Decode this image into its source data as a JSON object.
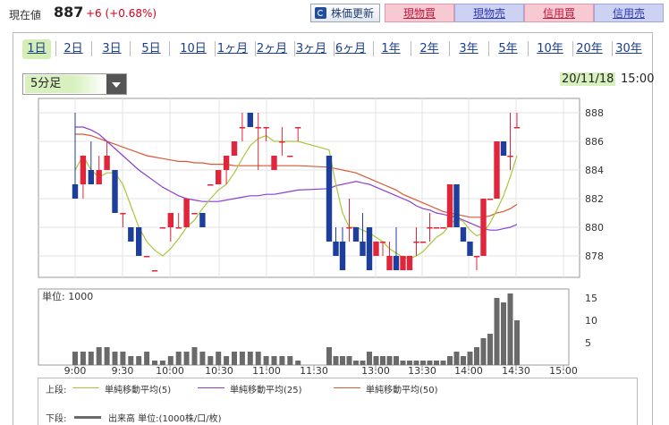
{
  "header": {
    "price_label": "現在値",
    "price": "887",
    "change": "+6 (+0.68%)",
    "refresh_label": "株価更新",
    "buttons": [
      {
        "label": "現物買",
        "kind": "buy"
      },
      {
        "label": "現物売",
        "kind": "sell"
      },
      {
        "label": "信用買",
        "kind": "buy"
      },
      {
        "label": "信用売",
        "kind": "sell"
      }
    ]
  },
  "periods": [
    "1日",
    "2日",
    "3日",
    "5日",
    "10日",
    "1ヶ月",
    "2ヶ月",
    "3ヶ月",
    "6ヶ月",
    "1年",
    "2年",
    "3年",
    "5年",
    "10年",
    "20年",
    "30年"
  ],
  "active_period": "1日",
  "interval": {
    "selected": "5分足"
  },
  "timestamp": {
    "date": "20/11/18",
    "time": "15:00"
  },
  "chart_data": {
    "type": "candlestick",
    "ylim": [
      876.5,
      889
    ],
    "yticks": [
      878,
      880,
      882,
      884,
      886,
      888
    ],
    "xticks": [
      "9:00",
      "9:30",
      "10:00",
      "10:30",
      "11:00",
      "11:30",
      "13:00",
      "13:30",
      "14:00",
      "14:30",
      "15:00"
    ],
    "candles": [
      {
        "o": 883,
        "h": 888,
        "l": 882,
        "c": 882
      },
      {
        "o": 883,
        "h": 885,
        "l": 882,
        "c": 885
      },
      {
        "o": 884,
        "h": 886,
        "l": 883,
        "c": 883
      },
      {
        "o": 883,
        "h": 885,
        "l": 883,
        "c": 884
      },
      {
        "o": 884,
        "h": 886,
        "l": 884,
        "c": 885
      },
      {
        "o": 884,
        "h": 884,
        "l": 881,
        "c": 881
      },
      {
        "o": 881,
        "h": 881,
        "l": 880,
        "c": 881
      },
      {
        "o": 880,
        "h": 880,
        "l": 879,
        "c": 879
      },
      {
        "o": 880,
        "h": 880,
        "l": 878,
        "c": 878
      },
      {
        "o": 878,
        "h": 878,
        "l": 878,
        "c": 878
      },
      {
        "o": 877,
        "h": 877,
        "l": 877,
        "c": 877
      },
      {
        "o": 880,
        "h": 880,
        "l": 880,
        "c": 880
      },
      {
        "o": 880,
        "h": 881,
        "l": 879,
        "c": 881
      },
      {
        "o": 880,
        "h": 881,
        "l": 880,
        "c": 880
      },
      {
        "o": 880,
        "h": 882,
        "l": 880,
        "c": 882
      },
      {
        "o": 881,
        "h": 881,
        "l": 881,
        "c": 881
      },
      {
        "o": 881,
        "h": 881,
        "l": 880,
        "c": 880
      },
      {
        "o": 883,
        "h": 883,
        "l": 883,
        "c": 883
      },
      {
        "o": 883,
        "h": 884,
        "l": 883,
        "c": 884
      },
      {
        "o": 884,
        "h": 885,
        "l": 883,
        "c": 885
      },
      {
        "o": 885,
        "h": 886,
        "l": 885,
        "c": 886
      },
      {
        "o": 887,
        "h": 888,
        "l": 886,
        "c": 887
      },
      {
        "o": 888,
        "h": 888,
        "l": 887,
        "c": 887
      },
      {
        "o": 887,
        "h": 888,
        "l": 884,
        "c": 887
      },
      {
        "o": 887,
        "h": 887,
        "l": 886,
        "c": 887
      },
      {
        "o": 884,
        "h": 885,
        "l": 884,
        "c": 885
      },
      {
        "o": 886,
        "h": 887,
        "l": 885,
        "c": 886
      },
      {
        "o": 885,
        "h": 885,
        "l": 885,
        "c": 885
      },
      {
        "o": 887,
        "h": 887,
        "l": 886,
        "c": 887
      },
      {
        "o": 885,
        "h": 885,
        "l": 879,
        "c": 879
      },
      {
        "o": 879,
        "h": 880,
        "l": 878,
        "c": 878
      },
      {
        "o": 879,
        "h": 880,
        "l": 877,
        "c": 877
      },
      {
        "o": 880,
        "h": 882,
        "l": 879,
        "c": 880
      },
      {
        "o": 880,
        "h": 880,
        "l": 879,
        "c": 879
      },
      {
        "o": 879,
        "h": 881,
        "l": 878,
        "c": 878
      },
      {
        "o": 880,
        "h": 880,
        "l": 877,
        "c": 877
      },
      {
        "o": 878,
        "h": 879,
        "l": 878,
        "c": 879
      },
      {
        "o": 879,
        "h": 879,
        "l": 878,
        "c": 879
      },
      {
        "o": 877,
        "h": 879,
        "l": 877,
        "c": 878
      },
      {
        "o": 878,
        "h": 880,
        "l": 877,
        "c": 877
      },
      {
        "o": 877,
        "h": 878,
        "l": 877,
        "c": 878
      },
      {
        "o": 877,
        "h": 878,
        "l": 877,
        "c": 878
      },
      {
        "o": 879,
        "h": 880,
        "l": 878,
        "c": 879
      },
      {
        "o": 879,
        "h": 879,
        "l": 879,
        "c": 879
      },
      {
        "o": 880,
        "h": 881,
        "l": 879,
        "c": 880
      },
      {
        "o": 880,
        "h": 880,
        "l": 880,
        "c": 880
      },
      {
        "o": 880,
        "h": 880,
        "l": 880,
        "c": 880
      },
      {
        "o": 880,
        "h": 883,
        "l": 880,
        "c": 883
      },
      {
        "o": 883,
        "h": 883,
        "l": 880,
        "c": 880
      },
      {
        "o": 880,
        "h": 880,
        "l": 879,
        "c": 879
      },
      {
        "o": 879,
        "h": 879,
        "l": 878,
        "c": 878
      },
      {
        "o": 878,
        "h": 878,
        "l": 877,
        "c": 878
      },
      {
        "o": 878,
        "h": 882,
        "l": 878,
        "c": 882
      },
      {
        "o": 882,
        "h": 882,
        "l": 882,
        "c": 882
      },
      {
        "o": 882,
        "h": 886,
        "l": 882,
        "c": 886
      },
      {
        "o": 886,
        "h": 886,
        "l": 885,
        "c": 885
      },
      {
        "o": 885,
        "h": 888,
        "l": 884,
        "c": 885
      },
      {
        "o": 887,
        "h": 888,
        "l": 887,
        "c": 887
      }
    ],
    "ma5": [
      884,
      885,
      884,
      883.5,
      883.8,
      883.8,
      883,
      881.5,
      880,
      879,
      878.4,
      878,
      878.5,
      879.2,
      880,
      880.5,
      881.3,
      882,
      882.6,
      883,
      883.8,
      884.8,
      885.7,
      886.2,
      886.4,
      886,
      886,
      886,
      886,
      885.4,
      883,
      881,
      880,
      880,
      879.8,
      879.6,
      879.3,
      879,
      878.5,
      878.2,
      877.9,
      877.8,
      878,
      878.3,
      878.8,
      879.3,
      879.6,
      880.2,
      880.6,
      880.4,
      879.8,
      879.4,
      879.6,
      880.3,
      881.2,
      882.2,
      883.5,
      885
    ],
    "ma25": [
      887,
      887,
      886.8,
      886.5,
      886,
      885.5,
      885,
      884.5,
      884,
      883.6,
      883.2,
      882.8,
      882.5,
      882.2,
      882,
      881.9,
      881.8,
      881.8,
      881.8,
      881.9,
      882,
      882.1,
      882.2,
      882.2,
      882.3,
      882.3,
      882.4,
      882.5,
      882.6,
      882.7,
      882.9,
      883,
      883.1,
      883.2,
      883.1,
      883,
      882.8,
      882.6,
      882.4,
      882.2,
      882,
      881.8,
      881.5,
      881.3,
      881.2,
      881,
      880.9,
      880.8,
      880.7,
      880.5,
      880.3,
      880.1,
      879.9,
      879.8,
      879.8,
      879.9,
      880,
      880.2
    ],
    "ma50": [
      886.5,
      886.5,
      886.4,
      886.2,
      886,
      885.8,
      885.6,
      885.4,
      885.2,
      885,
      884.9,
      884.8,
      884.7,
      884.6,
      884.6,
      884.5,
      884.5,
      884.4,
      884.4,
      884.4,
      884.3,
      884.3,
      884.3,
      884.3,
      884.3,
      884.3,
      884.3,
      884.3,
      884.3,
      884.2,
      884.1,
      884,
      883.9,
      883.8,
      883.6,
      883.4,
      883.2,
      883,
      882.8,
      882.6,
      882.3,
      882.1,
      881.9,
      881.7,
      881.5,
      881.3,
      881.1,
      881,
      880.9,
      880.8,
      880.7,
      880.7,
      880.7,
      880.8,
      881,
      881.1,
      881.3,
      881.6
    ],
    "volume_label": "単位: 1000",
    "volume_yticks": [
      5,
      10,
      15
    ],
    "volume": [
      3,
      3,
      3,
      4,
      4,
      3,
      3,
      2,
      2,
      3,
      1,
      1,
      2,
      3,
      3,
      4,
      3,
      2,
      3,
      2,
      3,
      3,
      3,
      3,
      2,
      2,
      2,
      2,
      1,
      4,
      2,
      2,
      2,
      1,
      1,
      3,
      2,
      2,
      2,
      2,
      1,
      1,
      1,
      1,
      1,
      1,
      1,
      2,
      3,
      2,
      3,
      4,
      6,
      7,
      15,
      14,
      16,
      10
    ],
    "legend": {
      "upper_label": "上段:",
      "lower_label": "下段:",
      "series": [
        {
          "name": "単純移動平均(5)",
          "color": "#a8c83c"
        },
        {
          "name": "単純移動平均(25)",
          "color": "#8a3fd0"
        },
        {
          "name": "単純移動平均(50)",
          "color": "#d85a34"
        }
      ],
      "volume_series": "出来高 単位:(1000株/口/枚)"
    },
    "colors": {
      "up": "#e0263b",
      "down": "#1d3f9b",
      "volume": "#6a6a6a"
    }
  }
}
